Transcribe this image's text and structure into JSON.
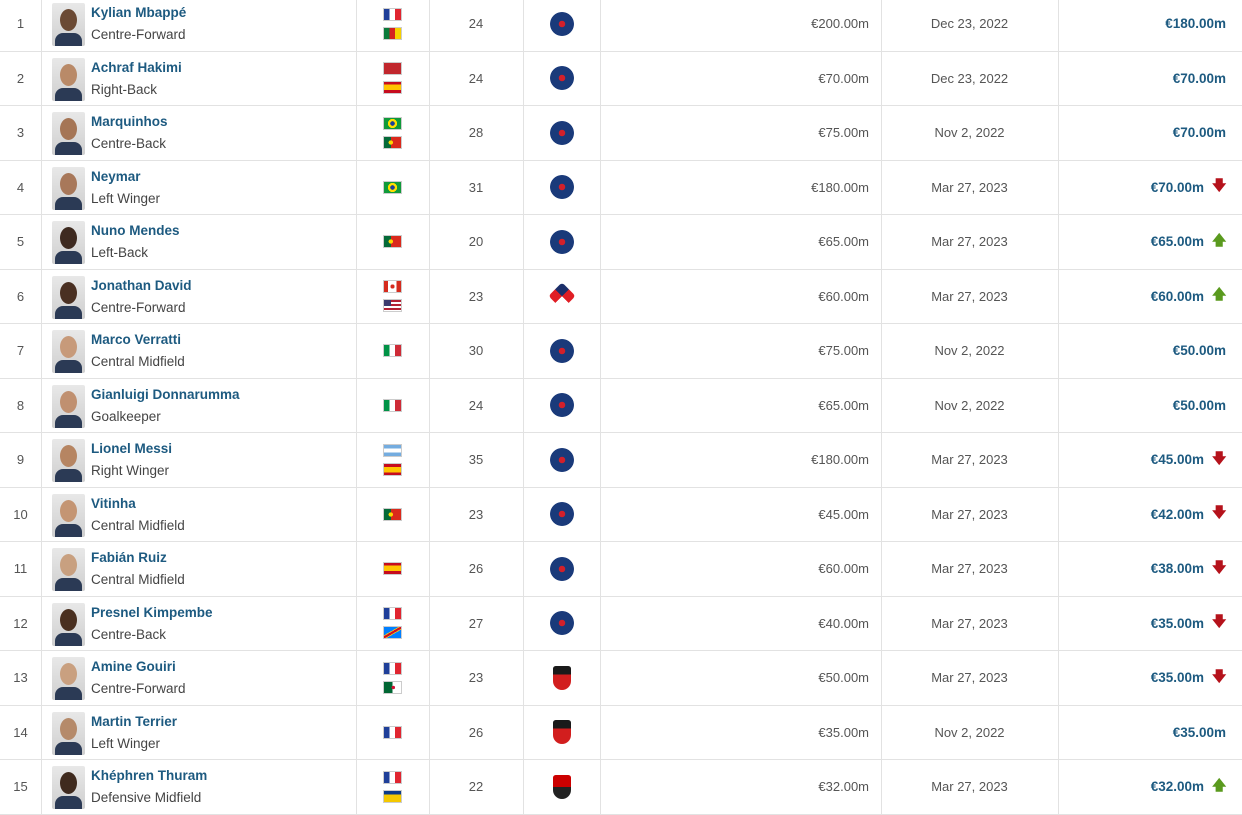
{
  "colors": {
    "name": "#1d5a80",
    "down": "#b5121b",
    "up": "#5a9a1e"
  },
  "players": [
    {
      "rank": "1",
      "name": "Kylian Mbappé",
      "position": "Centre-Forward",
      "flags": [
        "france",
        "cameroon"
      ],
      "age": "24",
      "club": "psg",
      "prev_value": "€200.00m",
      "date": "Dec 23, 2022",
      "value": "€180.00m",
      "trend": "none",
      "skin": "#6b4a34"
    },
    {
      "rank": "2",
      "name": "Achraf Hakimi",
      "position": "Right-Back",
      "flags": [
        "morocco",
        "spain"
      ],
      "age": "24",
      "club": "psg",
      "prev_value": "€70.00m",
      "date": "Dec 23, 2022",
      "value": "€70.00m",
      "trend": "none",
      "skin": "#b98a68"
    },
    {
      "rank": "3",
      "name": "Marquinhos",
      "position": "Centre-Back",
      "flags": [
        "brazil",
        "portugal"
      ],
      "age": "28",
      "club": "psg",
      "prev_value": "€75.00m",
      "date": "Nov 2, 2022",
      "value": "€70.00m",
      "trend": "none",
      "skin": "#a57555"
    },
    {
      "rank": "4",
      "name": "Neymar",
      "position": "Left Winger",
      "flags": [
        "brazil"
      ],
      "age": "31",
      "club": "psg",
      "prev_value": "€180.00m",
      "date": "Mar 27, 2023",
      "value": "€70.00m",
      "trend": "down",
      "skin": "#a8785a"
    },
    {
      "rank": "5",
      "name": "Nuno Mendes",
      "position": "Left-Back",
      "flags": [
        "portugal"
      ],
      "age": "20",
      "club": "psg",
      "prev_value": "€65.00m",
      "date": "Mar 27, 2023",
      "value": "€65.00m",
      "trend": "up",
      "skin": "#3e2a20"
    },
    {
      "rank": "6",
      "name": "Jonathan David",
      "position": "Centre-Forward",
      "flags": [
        "canada",
        "usa"
      ],
      "age": "23",
      "club": "lille",
      "prev_value": "€60.00m",
      "date": "Mar 27, 2023",
      "value": "€60.00m",
      "trend": "up",
      "skin": "#4a3022"
    },
    {
      "rank": "7",
      "name": "Marco Verratti",
      "position": "Central Midfield",
      "flags": [
        "italy"
      ],
      "age": "30",
      "club": "psg",
      "prev_value": "€75.00m",
      "date": "Nov 2, 2022",
      "value": "€50.00m",
      "trend": "none",
      "skin": "#c79a7a"
    },
    {
      "rank": "8",
      "name": "Gianluigi Donnarumma",
      "position": "Goalkeeper",
      "flags": [
        "italy"
      ],
      "age": "24",
      "club": "psg",
      "prev_value": "€65.00m",
      "date": "Nov 2, 2022",
      "value": "€50.00m",
      "trend": "none",
      "skin": "#c09070"
    },
    {
      "rank": "9",
      "name": "Lionel Messi",
      "position": "Right Winger",
      "flags": [
        "argentina",
        "spain"
      ],
      "age": "35",
      "club": "psg",
      "prev_value": "€180.00m",
      "date": "Mar 27, 2023",
      "value": "€45.00m",
      "trend": "down",
      "skin": "#b68562"
    },
    {
      "rank": "10",
      "name": "Vitinha",
      "position": "Central Midfield",
      "flags": [
        "portugal"
      ],
      "age": "23",
      "club": "psg",
      "prev_value": "€45.00m",
      "date": "Mar 27, 2023",
      "value": "€42.00m",
      "trend": "down",
      "skin": "#c49573"
    },
    {
      "rank": "11",
      "name": "Fabián Ruiz",
      "position": "Central Midfield",
      "flags": [
        "spain"
      ],
      "age": "26",
      "club": "psg",
      "prev_value": "€60.00m",
      "date": "Mar 27, 2023",
      "value": "€38.00m",
      "trend": "down",
      "skin": "#c8a080"
    },
    {
      "rank": "12",
      "name": "Presnel Kimpembe",
      "position": "Centre-Back",
      "flags": [
        "france",
        "drcongo"
      ],
      "age": "27",
      "club": "psg",
      "prev_value": "€40.00m",
      "date": "Mar 27, 2023",
      "value": "€35.00m",
      "trend": "down",
      "skin": "#4a3020"
    },
    {
      "rank": "13",
      "name": "Amine Gouiri",
      "position": "Centre-Forward",
      "flags": [
        "france",
        "algeria"
      ],
      "age": "23",
      "club": "rennes",
      "prev_value": "€50.00m",
      "date": "Mar 27, 2023",
      "value": "€35.00m",
      "trend": "down",
      "skin": "#c9a080"
    },
    {
      "rank": "14",
      "name": "Martin Terrier",
      "position": "Left Winger",
      "flags": [
        "france"
      ],
      "age": "26",
      "club": "rennes",
      "prev_value": "€35.00m",
      "date": "Nov 2, 2022",
      "value": "€35.00m",
      "trend": "none",
      "skin": "#b58a6a"
    },
    {
      "rank": "15",
      "name": "Khéphren Thuram",
      "position": "Defensive Midfield",
      "flags": [
        "france",
        "guadeloupe"
      ],
      "age": "22",
      "club": "nice",
      "prev_value": "€32.00m",
      "date": "Mar 27, 2023",
      "value": "€32.00m",
      "trend": "up",
      "skin": "#3f2a1e"
    }
  ]
}
